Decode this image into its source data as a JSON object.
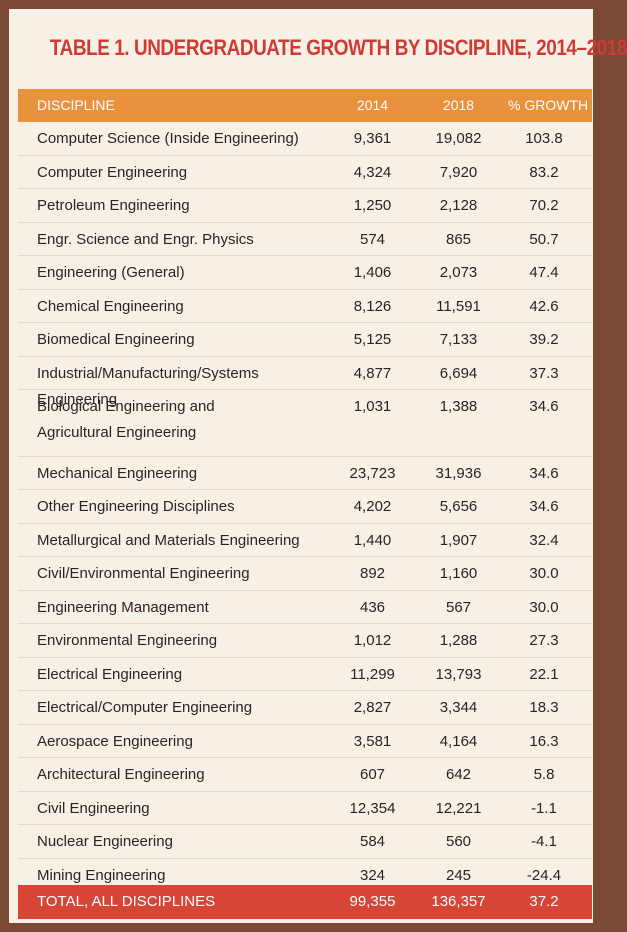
{
  "title": "TABLE 1. UNDERGRADUATE GROWTH BY DISCIPLINE, 2014–2018",
  "colors": {
    "title": "#cf3b33",
    "header_bg": "#e8923e",
    "total_bg": "#d64535",
    "frame": "#7a4a34",
    "panel": "#f7f0e6"
  },
  "header": {
    "discipline": "DISCIPLINE",
    "y2014": "2014",
    "y2018": "2018",
    "growth": "% GROWTH"
  },
  "rows": [
    {
      "discipline": "Computer Science (Inside Engineering)",
      "y2014": "9,361",
      "y2018": "19,082",
      "growth": "103.8"
    },
    {
      "discipline": "Computer Engineering",
      "y2014": "4,324",
      "y2018": "7,920",
      "growth": "83.2"
    },
    {
      "discipline": "Petroleum Engineering",
      "y2014": "1,250",
      "y2018": "2,128",
      "growth": "70.2"
    },
    {
      "discipline": "Engr. Science and Engr. Physics",
      "y2014": "574",
      "y2018": "865",
      "growth": "50.7"
    },
    {
      "discipline": "Engineering (General)",
      "y2014": "1,406",
      "y2018": "2,073",
      "growth": "47.4"
    },
    {
      "discipline": "Chemical Engineering",
      "y2014": "8,126",
      "y2018": "11,591",
      "growth": "42.6"
    },
    {
      "discipline": "Biomedical Engineering",
      "y2014": "5,125",
      "y2018": "7,133",
      "growth": "39.2"
    },
    {
      "discipline": "Industrial/Manufacturing/Systems Engineering",
      "y2014": "4,877",
      "y2018": "6,694",
      "growth": "37.3"
    },
    {
      "discipline": "Biological Engineering and Agricultural Engineering",
      "y2014": "1,031",
      "y2018": "1,388",
      "growth": "34.6"
    },
    {
      "discipline": "Mechanical Engineering",
      "y2014": "23,723",
      "y2018": "31,936",
      "growth": "34.6"
    },
    {
      "discipline": "Other Engineering Disciplines",
      "y2014": "4,202",
      "y2018": "5,656",
      "growth": "34.6"
    },
    {
      "discipline": "Metallurgical and Materials Engineering",
      "y2014": "1,440",
      "y2018": "1,907",
      "growth": "32.4"
    },
    {
      "discipline": "Civil/Environmental Engineering",
      "y2014": "892",
      "y2018": "1,160",
      "growth": "30.0"
    },
    {
      "discipline": "Engineering Management",
      "y2014": "436",
      "y2018": "567",
      "growth": "30.0"
    },
    {
      "discipline": "Environmental Engineering",
      "y2014": "1,012",
      "y2018": "1,288",
      "growth": "27.3"
    },
    {
      "discipline": "Electrical Engineering",
      "y2014": "11,299",
      "y2018": "13,793",
      "growth": "22.1"
    },
    {
      "discipline": "Electrical/Computer Engineering",
      "y2014": "2,827",
      "y2018": "3,344",
      "growth": "18.3"
    },
    {
      "discipline": "Aerospace Engineering",
      "y2014": "3,581",
      "y2018": "4,164",
      "growth": "16.3"
    },
    {
      "discipline": "Architectural Engineering",
      "y2014": "607",
      "y2018": "642",
      "growth": "5.8"
    },
    {
      "discipline": "Civil Engineering",
      "y2014": "12,354",
      "y2018": "12,221",
      "growth": "-1.1"
    },
    {
      "discipline": "Nuclear Engineering",
      "y2014": "584",
      "y2018": "560",
      "growth": "-4.1"
    },
    {
      "discipline": "Mining Engineering",
      "y2014": "324",
      "y2018": "245",
      "growth": "-24.4"
    }
  ],
  "total": {
    "discipline": "TOTAL, ALL DISCIPLINES",
    "y2014": "99,355",
    "y2018": "136,357",
    "growth": "37.2"
  }
}
